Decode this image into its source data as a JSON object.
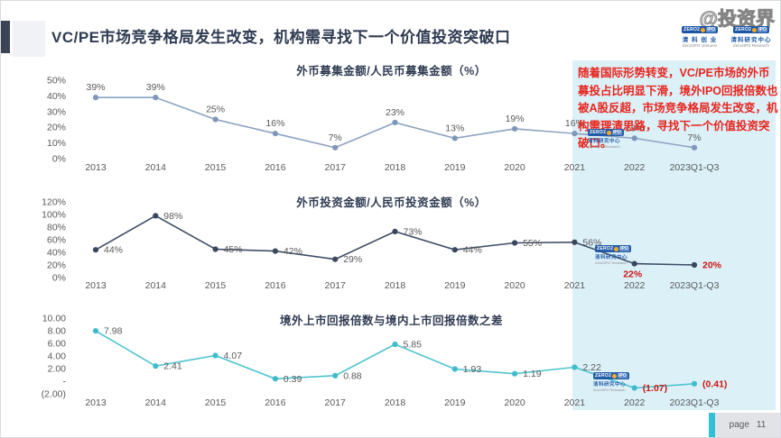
{
  "page": {
    "title": "VC/PE市场竞争格局发生改变，机构需寻找下一个价值投资突破口",
    "watermark": "@投资界",
    "page_label": "page",
    "page_number": "11"
  },
  "logos": {
    "ventures": {
      "badge_left": "ZERO2",
      "badge_right": "IPO",
      "cn": "清 科 创 业",
      "en": "Zero2IPO Ventures"
    },
    "research": {
      "badge_left": "ZERO2",
      "badge_right": "IPO",
      "cn": "清科研究中心",
      "en": "Zero2IPO Research"
    }
  },
  "annotation": {
    "text": "随着国际形势转变，VC/PE市场的外币募投占比明显下滑，境外IPO回报倍数也被A股反超，市场竞争格局发生改变，机构需理清思路，寻找下一个价值投资突破口。",
    "color": "#e8251d",
    "highlight_years": [
      "2021",
      "2022",
      "2023Q1-Q3"
    ],
    "highlight_color": "#dcf0f8"
  },
  "chart_data": [
    {
      "type": "line",
      "title": "外币募集金额/人民币募集金额（%）",
      "categories": [
        "2013",
        "2014",
        "2015",
        "2016",
        "2017",
        "2018",
        "2019",
        "2020",
        "2021",
        "2022",
        "2023Q1-Q3"
      ],
      "values": [
        39,
        39,
        25,
        16,
        7,
        23,
        13,
        19,
        16,
        13,
        7
      ],
      "labels": [
        "39%",
        "39%",
        "25%",
        "16%",
        "7%",
        "23%",
        "13%",
        "19%",
        "16%",
        "13%",
        "7%"
      ],
      "red": [
        false,
        false,
        false,
        false,
        false,
        false,
        false,
        false,
        false,
        false,
        false
      ],
      "ylim": [
        0,
        50
      ],
      "yticks": [
        "50%",
        "40%",
        "30%",
        "20%",
        "10%",
        "0%"
      ],
      "line_color": "#8da3c2",
      "marker_color": "#7e97b8",
      "grid": false,
      "legend": "none"
    },
    {
      "type": "line",
      "title": "外币投资金额/人民币投资金额（%）",
      "categories": [
        "2013",
        "2014",
        "2015",
        "2016",
        "2017",
        "2018",
        "2019",
        "2020",
        "2021",
        "2022",
        "2023Q1-Q3"
      ],
      "values": [
        44,
        98,
        45,
        42,
        29,
        73,
        44,
        55,
        56,
        22,
        20
      ],
      "labels": [
        "44%",
        "98%",
        "45%",
        "42%",
        "29%",
        "73%",
        "44%",
        "55%",
        "56%",
        "22%",
        "20%"
      ],
      "red": [
        false,
        false,
        false,
        false,
        false,
        false,
        false,
        false,
        false,
        true,
        true
      ],
      "ylim": [
        0,
        120
      ],
      "yticks": [
        "120%",
        "100%",
        "80%",
        "60%",
        "40%",
        "20%",
        "0%"
      ],
      "line_color": "#3e4e68",
      "marker_color": "#39485f",
      "grid": false,
      "legend": "none"
    },
    {
      "type": "line",
      "title": "境外上市回报倍数与境内上市回报倍数之差",
      "categories": [
        "2013",
        "2014",
        "2015",
        "2016",
        "2017",
        "2018",
        "2019",
        "2020",
        "2021",
        "2022",
        "2023Q1-Q3"
      ],
      "values": [
        7.98,
        2.41,
        4.07,
        0.39,
        0.88,
        5.85,
        1.93,
        1.19,
        2.22,
        -1.07,
        -0.41
      ],
      "labels": [
        "7.98",
        "2.41",
        "4.07",
        "0.39",
        "0.88",
        "5.85",
        "1.93",
        "1.19",
        "2.22",
        "(1.07)",
        "(0.41)"
      ],
      "red": [
        false,
        false,
        false,
        false,
        false,
        false,
        false,
        false,
        false,
        true,
        true
      ],
      "ylim": [
        -2,
        10
      ],
      "yticks": [
        "10.00",
        "8.00",
        "6.00",
        "4.00",
        "2.00",
        "-",
        "(2.00)"
      ],
      "line_color": "#4fc4d1",
      "marker_color": "#3fbccb",
      "grid": false,
      "legend": "none"
    }
  ],
  "colors": {
    "title_text": "#2f3b52",
    "axis_text": "#595959",
    "red_label": "#cf1410",
    "highlight": "#dcf0f8",
    "page_bar": "#2fc1d3"
  }
}
